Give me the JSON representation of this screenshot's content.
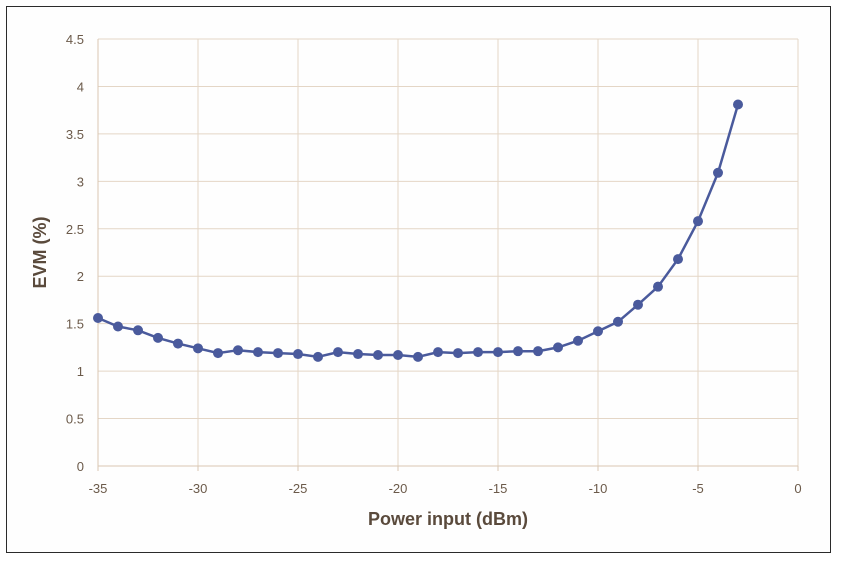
{
  "chart_data": {
    "type": "line",
    "xlabel": "Power input (dBm)",
    "ylabel": "EVM (%)",
    "xlim": [
      -35,
      0
    ],
    "ylim": [
      0,
      4.5
    ],
    "xticks": [
      -35,
      -30,
      -25,
      -20,
      -15,
      -10,
      -5,
      0
    ],
    "yticks": [
      0,
      0.5,
      1,
      1.5,
      2,
      2.5,
      3,
      3.5,
      4,
      4.5
    ],
    "xtick_labels": [
      "-35",
      "-30",
      "-25",
      "-20",
      "-15",
      "-10",
      "-5",
      "0"
    ],
    "ytick_labels": [
      "0",
      "0.5",
      "1",
      "1.5",
      "2",
      "2.5",
      "3",
      "3.5",
      "4",
      "4.5"
    ],
    "grid": true,
    "legend": "none",
    "line_color": "#4a5a9c",
    "series": [
      {
        "x": [
          -35,
          -34,
          -33,
          -32,
          -31,
          -30,
          -29,
          -28,
          -27,
          -26,
          -25,
          -24,
          -23,
          -22,
          -21,
          -20,
          -19,
          -18,
          -17,
          -16,
          -15,
          -14,
          -13,
          -12,
          -11,
          -10,
          -9,
          -8,
          -7,
          -6,
          -5,
          -4,
          -3
        ],
        "values": [
          1.56,
          1.47,
          1.43,
          1.35,
          1.29,
          1.24,
          1.19,
          1.22,
          1.2,
          1.19,
          1.18,
          1.15,
          1.2,
          1.18,
          1.17,
          1.17,
          1.15,
          1.2,
          1.19,
          1.2,
          1.2,
          1.21,
          1.21,
          1.25,
          1.32,
          1.42,
          1.52,
          1.7,
          1.89,
          2.18,
          2.58,
          3.09,
          3.81
        ]
      }
    ]
  }
}
